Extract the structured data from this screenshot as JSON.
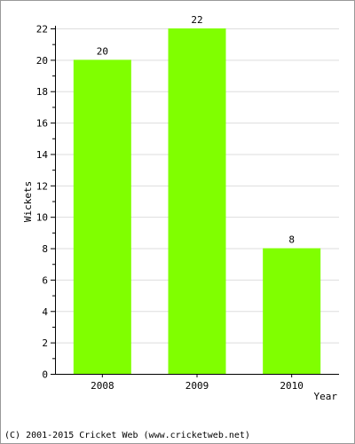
{
  "chart_data": {
    "type": "bar",
    "categories": [
      "2008",
      "2009",
      "2010"
    ],
    "values": [
      20,
      22,
      8
    ],
    "data_labels": [
      "20",
      "22",
      "8"
    ],
    "title": "",
    "xlabel": "Year",
    "ylabel": "Wickets",
    "ylim": [
      0,
      22
    ],
    "y_ticks": [
      0,
      2,
      4,
      6,
      8,
      10,
      12,
      14,
      16,
      18,
      20,
      22
    ],
    "grid": true,
    "bar_color": "#80ff00",
    "grid_color": "#dddddd"
  },
  "footer": {
    "credit": "(C) 2001-2015 Cricket Web (www.cricketweb.net)"
  }
}
